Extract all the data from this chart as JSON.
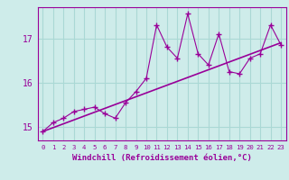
{
  "x": [
    0,
    1,
    2,
    3,
    4,
    5,
    6,
    7,
    8,
    9,
    10,
    11,
    12,
    13,
    14,
    15,
    16,
    17,
    18,
    19,
    20,
    21,
    22,
    23
  ],
  "y": [
    14.9,
    15.1,
    15.2,
    15.35,
    15.4,
    15.45,
    15.3,
    15.2,
    15.55,
    15.8,
    16.1,
    17.3,
    16.8,
    16.55,
    17.55,
    16.65,
    16.4,
    17.1,
    16.25,
    16.2,
    16.55,
    16.65,
    17.3,
    16.85
  ],
  "trend_x": [
    0,
    23
  ],
  "trend_y": [
    14.9,
    16.9
  ],
  "line_color": "#990099",
  "xlabel": "Windchill (Refroidissement éolien,°C)",
  "ylabel_ticks": [
    15,
    16,
    17
  ],
  "xlim": [
    -0.5,
    23.5
  ],
  "ylim": [
    14.7,
    17.7
  ],
  "bg_color": "#ceecea",
  "grid_color": "#aad8d5"
}
